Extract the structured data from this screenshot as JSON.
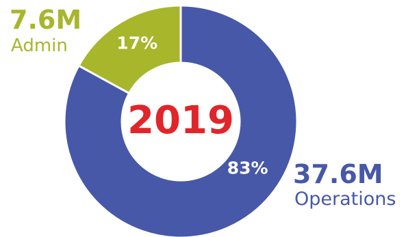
{
  "chart_data": {
    "type": "pie",
    "title": "",
    "center_label": "2019",
    "slices": [
      {
        "label": "Operations",
        "value_label": "37.6M",
        "value": 37.6,
        "percent_label": "83%",
        "percent": 83,
        "color": "#4758a8"
      },
      {
        "label": "Admin",
        "value_label": "7.6M",
        "value": 7.6,
        "percent_label": "17%",
        "percent": 17,
        "color": "#a8b62c"
      }
    ],
    "center_label_color": "#e0252b",
    "hole_color": "#ffffff"
  }
}
